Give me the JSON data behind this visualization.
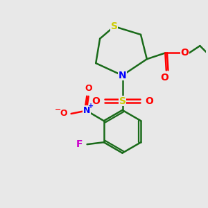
{
  "background_color": "#e8e8e8",
  "atom_colors": {
    "S": "#cccc00",
    "N": "#0000ff",
    "O": "#ff0000",
    "F": "#cc00cc",
    "C": "#1a6b1a",
    "bond": "#1a6b1a"
  },
  "bond_width": 1.8,
  "figsize": [
    3.0,
    3.0
  ],
  "dpi": 100,
  "xlim": [
    0,
    10
  ],
  "ylim": [
    0,
    10
  ]
}
